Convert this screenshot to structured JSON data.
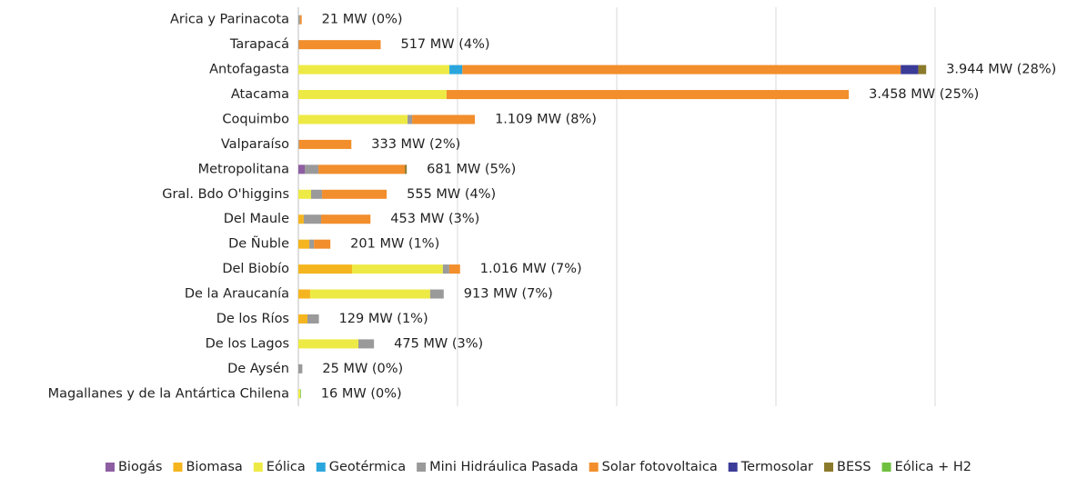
{
  "chart_data": {
    "type": "stacked_barh",
    "categories": [
      "Arica y Parinacota",
      "Tarapacá",
      "Antofagasta",
      "Atacama",
      "Coquimbo",
      "Valparaíso",
      "Metropolitana",
      "Gral. Bdo O'higgins",
      "Del Maule",
      "De Ñuble",
      "Del Biobío",
      "De la Araucanía",
      "De los Ríos",
      "De los Lagos",
      "De Aysén",
      "Magallanes y de la Antártica Chilena"
    ],
    "series": [
      {
        "name": "Biogás",
        "color": "#8e5ea2",
        "values": [
          null,
          null,
          null,
          null,
          null,
          null,
          40,
          null,
          null,
          null,
          null,
          null,
          null,
          null,
          null,
          null
        ]
      },
      {
        "name": "Biomasa",
        "color": "#f5b51e",
        "values": [
          null,
          null,
          null,
          null,
          null,
          null,
          null,
          null,
          34,
          69,
          337,
          74,
          57,
          null,
          null,
          null
        ]
      },
      {
        "name": "Eólica",
        "color": "#eeea45",
        "values": [
          null,
          null,
          949,
          931,
          686,
          null,
          null,
          80,
          null,
          null,
          571,
          754,
          null,
          377,
          null,
          12
        ]
      },
      {
        "name": "Geotérmica",
        "color": "#2aa6dc",
        "values": [
          null,
          null,
          81,
          null,
          null,
          null,
          null,
          null,
          null,
          null,
          null,
          null,
          null,
          null,
          null,
          null
        ]
      },
      {
        "name": "Mini Hidráulica Pasada",
        "color": "#9a9a9a",
        "values": [
          10,
          3,
          null,
          null,
          29,
          4,
          86,
          69,
          109,
          29,
          40,
          85,
          72,
          98,
          25,
          null
        ]
      },
      {
        "name": "Solar fotovoltaica",
        "color": "#f28e2b",
        "values": [
          11,
          514,
          2754,
          2527,
          394,
          329,
          543,
          406,
          310,
          103,
          68,
          null,
          null,
          null,
          null,
          null
        ]
      },
      {
        "name": "Termosolar",
        "color": "#3b3b98",
        "values": [
          null,
          null,
          110,
          null,
          null,
          null,
          null,
          null,
          null,
          null,
          null,
          null,
          null,
          null,
          null,
          null
        ]
      },
      {
        "name": "BESS",
        "color": "#8b7a2b",
        "values": [
          null,
          null,
          50,
          null,
          null,
          null,
          12,
          null,
          null,
          null,
          null,
          null,
          null,
          null,
          null,
          null
        ]
      },
      {
        "name": "Eólica + H2",
        "color": "#70c040",
        "values": [
          null,
          null,
          null,
          null,
          null,
          null,
          null,
          null,
          null,
          null,
          null,
          null,
          null,
          null,
          null,
          4
        ]
      }
    ],
    "totals": [
      21,
      517,
      3944,
      3458,
      1109,
      333,
      681,
      555,
      453,
      201,
      1016,
      913,
      129,
      475,
      25,
      16
    ],
    "total_labels": [
      "21 MW (0%)",
      "517 MW (4%)",
      "3.944 MW (28%)",
      "3.458 MW (25%)",
      "1.109 MW (8%)",
      "333 MW (2%)",
      "681 MW (5%)",
      "555 MW (4%)",
      "453 MW (3%)",
      "201 MW (1%)",
      "1.016 MW (7%)",
      "913 MW (7%)",
      "129 MW (1%)",
      "475 MW (3%)",
      "25 MW (0%)",
      "16 MW (0%)"
    ],
    "xlim": [
      0,
      4000
    ],
    "xticks": [
      0,
      1000,
      2000,
      3000,
      4000
    ],
    "grid": true,
    "legend": "bottom"
  }
}
